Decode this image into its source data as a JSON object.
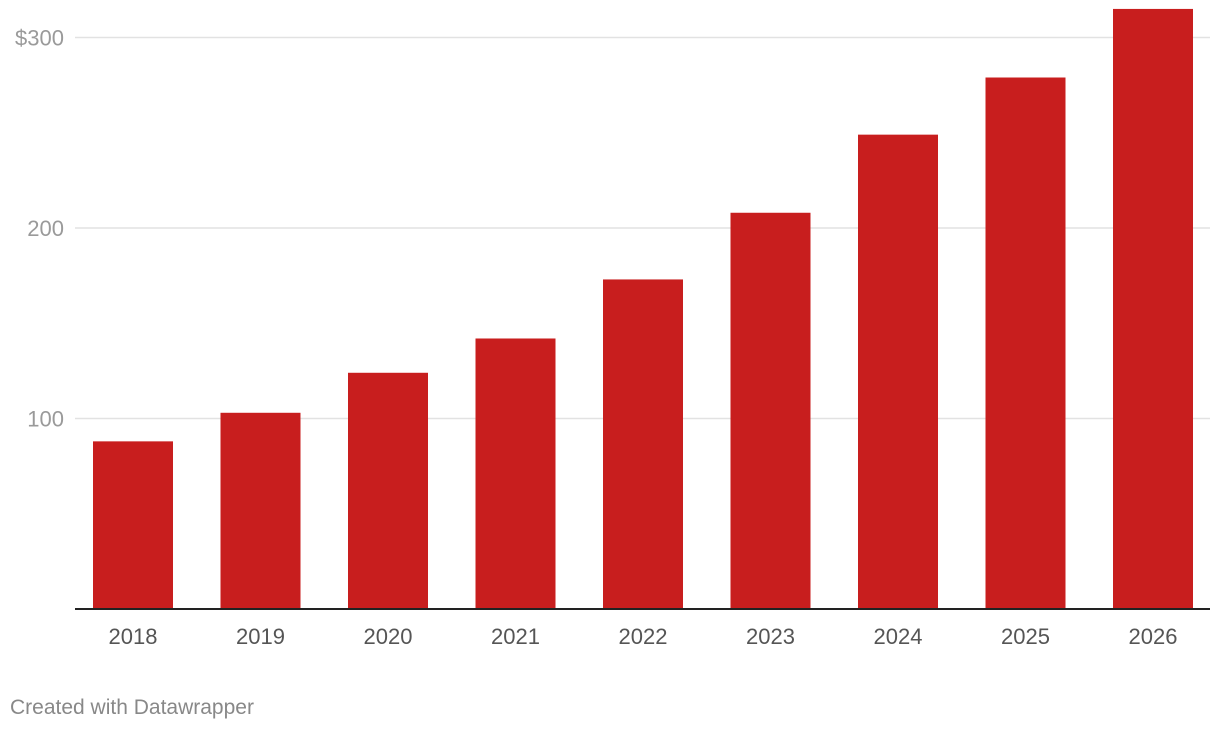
{
  "chart_data": {
    "type": "bar",
    "categories": [
      "2018",
      "2019",
      "2020",
      "2021",
      "2022",
      "2023",
      "2024",
      "2025",
      "2026"
    ],
    "values": [
      88,
      103,
      124,
      142,
      173,
      208,
      249,
      279,
      315
    ],
    "ylim": [
      0,
      315
    ],
    "yticks": [
      100,
      200,
      300
    ],
    "ytick_labels": [
      "100",
      "200",
      "$300"
    ],
    "grid": true,
    "bar_color": "#c81e1e"
  },
  "footer": {
    "credit": "Created with Datawrapper"
  }
}
